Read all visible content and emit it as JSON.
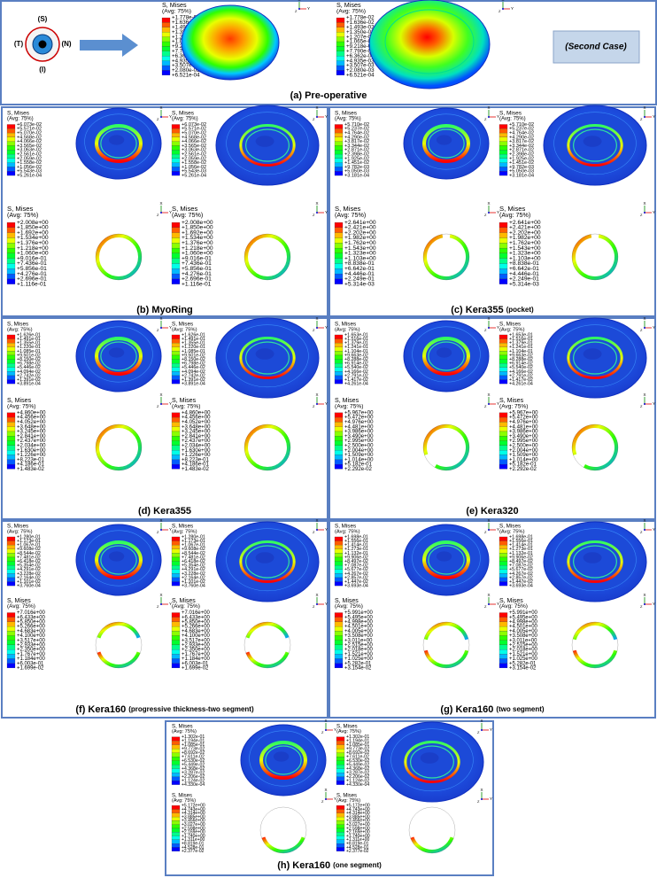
{
  "eye_labels": {
    "top": "(S)",
    "left": "(T)",
    "right": "(N)",
    "bottom": "(I)"
  },
  "second_case": "(Second Case)",
  "legend_title": "S, Mises",
  "legend_avg": "(Avg: 75%)",
  "triad": {
    "x": "X",
    "y": "Y",
    "z": "Z"
  },
  "panels": [
    {
      "caption": "(a) Pre-operative",
      "cornea_scale": [
        "+1.778e-02",
        "+1.636e-02",
        "+1.493e-02",
        "+1.350e-02",
        "+1.207e-02",
        "+1.065e-02",
        "+9.218e-03",
        "+7.790e-03",
        "+6.362e-03",
        "+4.935e-03",
        "+3.507e-03",
        "+2.080e-03",
        "+6.521e-04"
      ]
    },
    {
      "caption": "(b) MyoRing",
      "cornea_scale": [
        "+6.073e-02",
        "+5.571e-02",
        "+5.070e-02",
        "+4.568e-02",
        "+4.066e-02",
        "+3.565e-02",
        "+3.063e-02",
        "+2.561e-02",
        "+2.059e-02",
        "+1.558e-02",
        "+1.056e-02",
        "+5.543e-03",
        "+5.261e-04"
      ],
      "ring_scale": [
        "+2.008e+00",
        "+1.850e+00",
        "+1.692e+00",
        "+1.534e+00",
        "+1.376e+00",
        "+1.218e+00",
        "+1.060e+00",
        "+9.016e-01",
        "+7.436e-01",
        "+5.856e-01",
        "+4.276e-01",
        "+2.696e-01",
        "+1.116e-01"
      ]
    },
    {
      "caption": "(c) Kera355",
      "note": "(pocket)",
      "cornea_scale": [
        "+5.710e-02",
        "+5.237e-02",
        "+4.764e-02",
        "+4.290e-02",
        "+3.817e-02",
        "+3.344e-02",
        "+2.871e-02",
        "+2.398e-02",
        "+1.925e-02",
        "+1.451e-02",
        "+9.782e-03",
        "+5.050e-03",
        "+3.181e-04"
      ],
      "ring_scale": [
        "+2.641e+00",
        "+2.421e+00",
        "+2.202e+00",
        "+1.982e+00",
        "+1.762e+00",
        "+1.543e+00",
        "+1.323e+00",
        "+1.103e+00",
        "+8.838e-01",
        "+6.642e-01",
        "+4.446e-01",
        "+2.249e-01",
        "+5.314e-03"
      ]
    },
    {
      "caption": "(d) Kera355",
      "cornea_scale": [
        "+1.626e-01",
        "+1.491e-01",
        "+1.355e-01",
        "+1.220e-01",
        "+1.085e-01",
        "+9.501e-02",
        "+8.150e-02",
        "+6.798e-02",
        "+5.446e-02",
        "+4.094e-02",
        "+2.742e-02",
        "+1.391e-02",
        "+3.891e-04"
      ],
      "ring_scale": [
        "+4.860e+00",
        "+4.456e+00",
        "+4.052e+00",
        "+3.648e+00",
        "+3.245e+00",
        "+2.841e+00",
        "+2.437e+00",
        "+2.034e+00",
        "+1.630e+00",
        "+1.226e+00",
        "+8.223e-01",
        "+4.186e-01",
        "+1.483e-02"
      ]
    },
    {
      "caption": "(e) Kera320",
      "cornea_scale": [
        "+1.653e-01",
        "+1.516e-01",
        "+1.379e-01",
        "+1.241e-01",
        "+1.104e-01",
        "+9.663e-02",
        "+8.288e-02",
        "+6.914e-02",
        "+5.540e-02",
        "+4.166e-02",
        "+2.791e-02",
        "+1.417e-02",
        "+4.261e-04"
      ],
      "ring_scale": [
        "+5.967e+00",
        "+5.472e+00",
        "+4.976e+00",
        "+4.481e+00",
        "+3.986e+00",
        "+3.490e+00",
        "+2.995e+00",
        "+2.500e+00",
        "+2.004e+00",
        "+1.509e+00",
        "+1.014e+00",
        "+5.182e-01",
        "+2.292e-02"
      ]
    },
    {
      "caption": "(f) Kera160",
      "note": "(progressive thickness-two segment)",
      "cornea_scale": [
        "+1.280e-01",
        "+1.173e-01",
        "+1.067e-01",
        "+9.608e-02",
        "+8.544e-02",
        "+7.481e-02",
        "+6.418e-02",
        "+5.354e-02",
        "+4.291e-02",
        "+3.228e-02",
        "+2.164e-02",
        "+1.101e-02",
        "+3.760e-04"
      ],
      "ring_scale": [
        "+7.016e+00",
        "+6.433e+00",
        "+5.850e+00",
        "+5.266e+00",
        "+4.683e+00",
        "+4.100e+00",
        "+3.517e+00",
        "+2.933e+00",
        "+2.350e+00",
        "+1.767e+00",
        "+1.184e+00",
        "+6.003e-01",
        "+1.699e-02"
      ]
    },
    {
      "caption": "(g) Kera160",
      "note": "(two segment)",
      "cornea_scale": [
        "+1.698e-01",
        "+1.556e-01",
        "+1.414e-01",
        "+1.273e-01",
        "+1.132e-01",
        "+9.906e-02",
        "+8.497e-02",
        "+7.087e-02",
        "+5.677e-02",
        "+4.267e-02",
        "+2.857e-02",
        "+1.447e-02",
        "+3.693e-04"
      ],
      "ring_scale": [
        "+5.991e+00",
        "+5.495e+00",
        "+4.998e+00",
        "+4.501e+00",
        "+4.005e+00",
        "+3.508e+00",
        "+3.011e+00",
        "+2.515e+00",
        "+2.018e+00",
        "+1.521e+00",
        "+1.025e+00",
        "+5.282e-01",
        "+3.154e-02"
      ]
    },
    {
      "caption": "(h) Kera160",
      "note": "(one segment)",
      "cornea_scale": [
        "+1.302e-01",
        "+1.194e-01",
        "+1.085e-01",
        "+9.773e-02",
        "+8.692e-02",
        "+7.611e-02",
        "+6.530e-02",
        "+5.449e-02",
        "+4.368e-02",
        "+3.287e-02",
        "+2.206e-02",
        "+1.124e-02",
        "+4.330e-04"
      ],
      "ring_scale": [
        "+5.172e+00",
        "+4.743e+00",
        "+4.314e+00",
        "+3.885e+00",
        "+3.456e+00",
        "+3.027e+00",
        "+2.598e+00",
        "+2.169e+00",
        "+1.740e+00",
        "+1.311e+00",
        "+8.819e-01",
        "+4.528e-01",
        "+2.377e-02"
      ]
    }
  ]
}
